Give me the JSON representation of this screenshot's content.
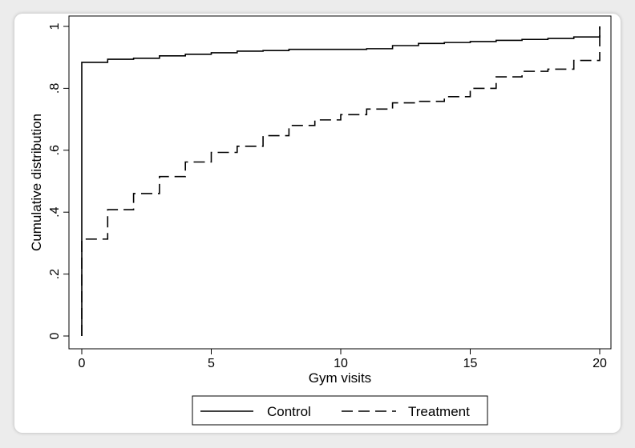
{
  "chart_data": {
    "type": "line",
    "title": "",
    "xlabel": "Gym visits",
    "ylabel": "Cumulative distribution",
    "xlim": [
      0,
      20
    ],
    "ylim": [
      0,
      1
    ],
    "xticks": [
      0,
      5,
      10,
      15,
      20
    ],
    "xtick_labels": [
      "0",
      "5",
      "10",
      "15",
      "20"
    ],
    "yticks": [
      0,
      0.2,
      0.4,
      0.6,
      0.8,
      1
    ],
    "ytick_labels": [
      "0",
      ".2",
      ".4",
      ".6",
      ".8",
      "1"
    ],
    "grid": false,
    "legend_position": "bottom",
    "series": [
      {
        "name": "Control",
        "style": "solid",
        "color": "#000000",
        "step": true,
        "x": [
          0,
          0,
          1,
          2,
          3,
          4,
          5,
          6,
          7,
          8,
          11,
          12,
          13,
          14,
          15,
          16,
          17,
          18,
          19,
          20,
          20
        ],
        "y": [
          0,
          0.884,
          0.894,
          0.897,
          0.905,
          0.91,
          0.915,
          0.92,
          0.922,
          0.926,
          0.928,
          0.938,
          0.945,
          0.948,
          0.951,
          0.955,
          0.958,
          0.961,
          0.966,
          0.966,
          1.0
        ]
      },
      {
        "name": "Treatment",
        "style": "dashed",
        "color": "#000000",
        "step": true,
        "x": [
          0,
          0,
          1,
          2,
          3,
          4,
          5,
          6,
          7,
          8,
          9,
          10,
          11,
          12,
          13,
          14,
          15,
          16,
          17,
          18,
          19,
          20,
          20
        ],
        "y": [
          0,
          0.313,
          0.408,
          0.46,
          0.515,
          0.562,
          0.593,
          0.613,
          0.647,
          0.68,
          0.698,
          0.715,
          0.733,
          0.753,
          0.758,
          0.773,
          0.8,
          0.837,
          0.855,
          0.862,
          0.89,
          0.89,
          1.0
        ]
      }
    ]
  }
}
